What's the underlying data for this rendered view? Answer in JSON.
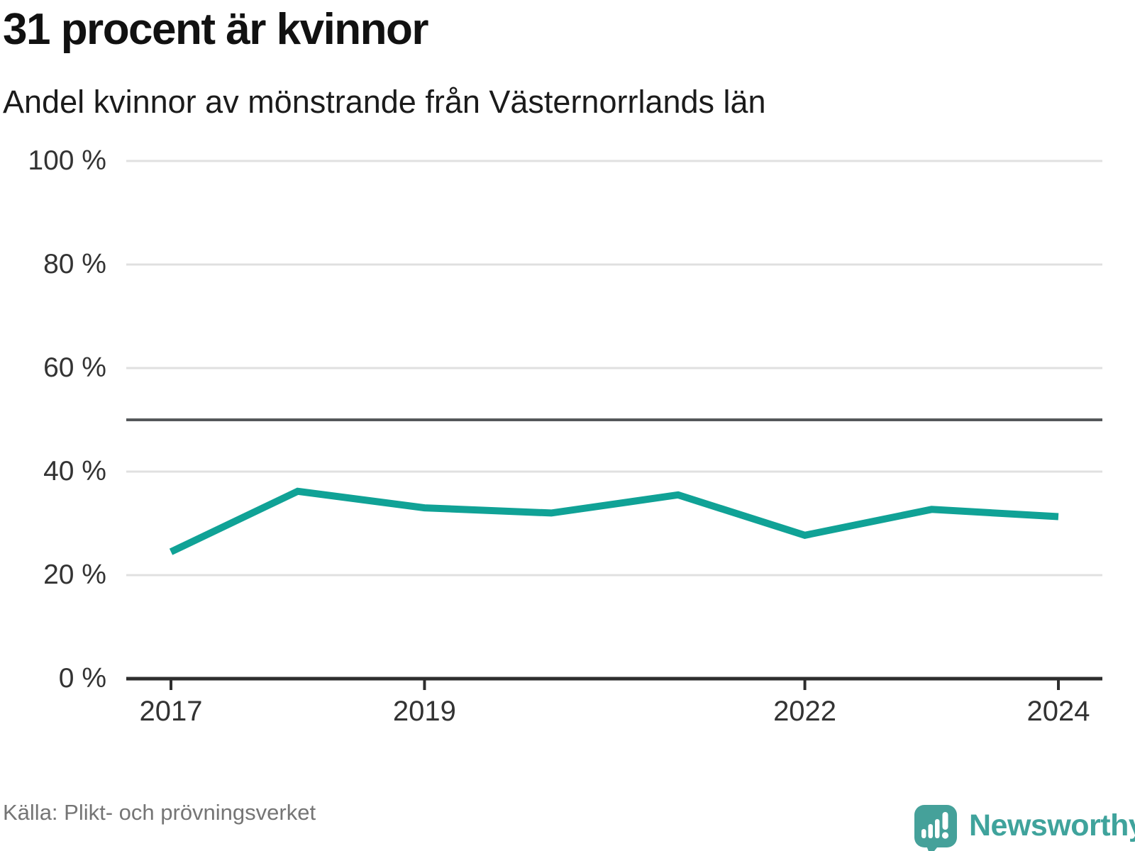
{
  "title": "31 procent är kvinnor",
  "subtitle": "Andel kvinnor av mönstrande från Västernorrlands län",
  "source": "Källa: Plikt- och prövningsverket",
  "logo": {
    "brand": "Newsworthy"
  },
  "colors": {
    "line": "#10a296",
    "grid": "#e0e0e0",
    "axis": "#2e2e2e",
    "reference": "#55585a",
    "tick_text": "#333333",
    "brand_text": "#3fa39c",
    "brand_icon": "#45a19a"
  },
  "chart_data": {
    "type": "line",
    "title": "31 procent är kvinnor",
    "subtitle": "Andel kvinnor av mönstrande från Västernorrlands län",
    "x": [
      2017,
      2018,
      2019,
      2020,
      2021,
      2022,
      2023,
      2024
    ],
    "series": [
      {
        "name": "Andel kvinnor av mönstrande",
        "color": "#10a296",
        "values": [
          24.5,
          36.2,
          33.0,
          32.0,
          35.5,
          27.7,
          32.7,
          31.3
        ]
      }
    ],
    "unit": "%",
    "ylim": [
      0,
      100
    ],
    "grid": true,
    "legend": "none",
    "reference_line": {
      "value": 50
    },
    "y_ticks": [
      {
        "value": 0,
        "label": "0 %"
      },
      {
        "value": 20,
        "label": "20 %"
      },
      {
        "value": 40,
        "label": "40 %"
      },
      {
        "value": 60,
        "label": "60 %"
      },
      {
        "value": 80,
        "label": "80 %"
      },
      {
        "value": 100,
        "label": "100 %"
      }
    ],
    "x_ticks": [
      {
        "value": 2017,
        "label": "2017"
      },
      {
        "value": 2019,
        "label": "2019"
      },
      {
        "value": 2022,
        "label": "2022"
      },
      {
        "value": 2024,
        "label": "2024"
      }
    ]
  }
}
